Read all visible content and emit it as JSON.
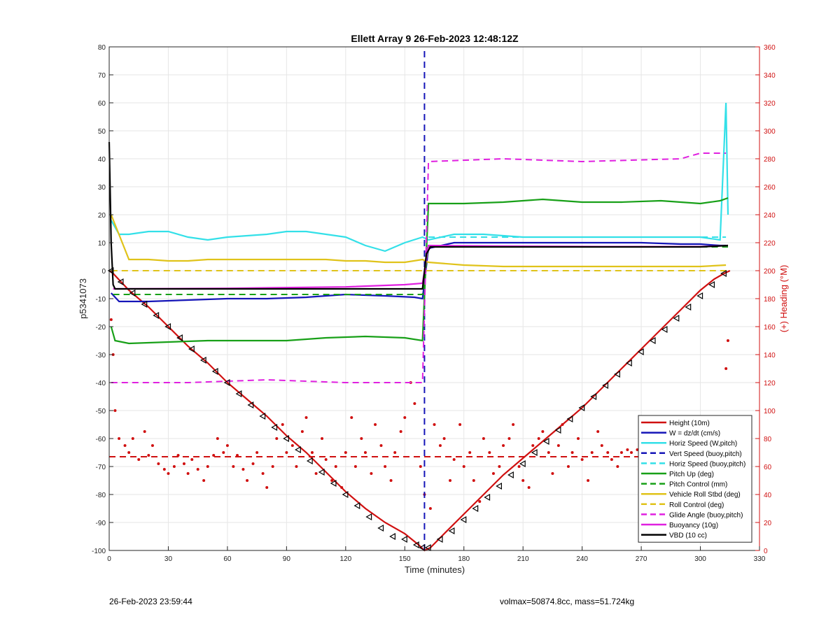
{
  "footer": {
    "left": "26-Feb-2023 23:59:44",
    "right": "volmax=50874.8cc, mass=51.724kg"
  },
  "chart_data": {
    "type": "line",
    "title": "Ellett Array 9 26-Feb-2023 12:48:12Z",
    "xlabel": "Time (minutes)",
    "ylabel_left": "p5341073",
    "ylabel_right": "(+) Heading (°M)",
    "xlim": [
      0,
      330
    ],
    "ylim_left": [
      -100,
      80
    ],
    "ylim_right": [
      0,
      360
    ],
    "xticks": [
      0,
      30,
      60,
      90,
      120,
      150,
      180,
      210,
      240,
      270,
      300,
      330
    ],
    "yticks_left": [
      80,
      70,
      60,
      50,
      40,
      30,
      20,
      10,
      0,
      -10,
      -20,
      -30,
      -40,
      -50,
      -60,
      -70,
      -80,
      -90,
      -100
    ],
    "yticks_right": [
      360,
      340,
      320,
      300,
      280,
      260,
      240,
      220,
      200,
      180,
      160,
      140,
      120,
      100,
      80,
      60,
      40,
      20,
      0
    ],
    "grid": true,
    "legend_position": "bottom-right",
    "apogee_time": 160,
    "colors": {
      "height": "#d01010",
      "w": "#1515b8",
      "horiz_speed": "#33e0e8",
      "pitch": "#18a018",
      "roll": "#e0c31a",
      "glide": "#e020e0",
      "buoyancy": "#e020e0",
      "vbd": "#000000",
      "heading": "#d01010"
    },
    "series": [
      {
        "name": "Height (10m)",
        "style": "solid",
        "color": "#d01010",
        "x": [
          0,
          2,
          10,
          20,
          30,
          40,
          50,
          60,
          70,
          80,
          90,
          100,
          110,
          120,
          130,
          140,
          150,
          157,
          160,
          163,
          170,
          180,
          190,
          200,
          210,
          220,
          230,
          240,
          250,
          260,
          270,
          280,
          290,
          300,
          307,
          312,
          315
        ],
        "y": [
          0,
          -1,
          -7,
          -13,
          -20,
          -27,
          -33,
          -40,
          -46,
          -52,
          -59,
          -65,
          -72,
          -79,
          -85,
          -90,
          -94,
          -98,
          -100,
          -99,
          -94,
          -87,
          -80,
          -73,
          -67,
          -61,
          -55,
          -49,
          -42,
          -35,
          -28,
          -21,
          -14,
          -7,
          -3,
          -1,
          0
        ]
      },
      {
        "name": "W = dz/dt (cm/s)",
        "style": "solid",
        "color": "#1515b8",
        "x": [
          1,
          5,
          20,
          40,
          60,
          80,
          100,
          120,
          140,
          155,
          159,
          162,
          175,
          190,
          210,
          230,
          250,
          270,
          290,
          300,
          310,
          313
        ],
        "y": [
          -8,
          -11,
          -11,
          -10.5,
          -10,
          -10,
          -9.5,
          -8.5,
          -9,
          -9.5,
          -10,
          8,
          10,
          10,
          10,
          10,
          10,
          10,
          9.5,
          9.5,
          9,
          9
        ]
      },
      {
        "name": "Horiz Speed (W,pitch)",
        "style": "solid",
        "color": "#33e0e8",
        "x": [
          1,
          5,
          10,
          20,
          30,
          40,
          50,
          60,
          70,
          80,
          90,
          100,
          110,
          120,
          130,
          140,
          150,
          159,
          162,
          175,
          190,
          210,
          230,
          250,
          270,
          290,
          300,
          310,
          313,
          314
        ],
        "y": [
          18,
          13,
          13,
          14,
          14,
          12,
          11,
          12,
          12.5,
          13,
          14,
          14,
          13,
          12,
          9,
          7,
          10,
          12,
          11,
          13,
          13,
          12,
          12,
          12,
          12,
          12,
          12,
          11,
          60,
          20
        ]
      },
      {
        "name": "Vert Speed (buoy,pitch)",
        "style": "dashed",
        "color": "#1515b8",
        "x": [
          160,
          160
        ],
        "y": [
          -100,
          80
        ]
      },
      {
        "name": "Horiz Speed (buoy,pitch)",
        "style": "dashed",
        "color": "#33e0e8",
        "x": [
          162,
          313
        ],
        "y": [
          12,
          12
        ]
      },
      {
        "name": "Pitch Up (deg)",
        "style": "solid",
        "color": "#18a018",
        "x": [
          1,
          3,
          10,
          30,
          50,
          70,
          90,
          110,
          130,
          150,
          159,
          162,
          180,
          200,
          220,
          240,
          260,
          280,
          300,
          310,
          314
        ],
        "y": [
          -20,
          -25,
          -26,
          -25.5,
          -25,
          -25,
          -25,
          -24,
          -23.5,
          -24,
          -25,
          24,
          24,
          24.5,
          25.5,
          24.5,
          24.5,
          25,
          24,
          25,
          26
        ]
      },
      {
        "name": "Pitch Control (mm)",
        "style": "dashed",
        "color": "#18a018",
        "x": [
          2,
          159,
          162,
          314
        ],
        "y": [
          -8.5,
          -8.5,
          8.5,
          8.5
        ]
      },
      {
        "name": "Vehicle Roll Stbd (deg)",
        "style": "solid",
        "color": "#e0c31a",
        "x": [
          1,
          10,
          20,
          30,
          40,
          50,
          60,
          70,
          80,
          90,
          100,
          110,
          120,
          130,
          140,
          150,
          159,
          162,
          180,
          200,
          220,
          240,
          260,
          280,
          300,
          313
        ],
        "y": [
          20,
          4,
          4,
          3.5,
          3.5,
          4,
          4,
          4,
          4,
          4,
          4,
          4,
          3.5,
          3.5,
          3,
          3,
          4,
          3,
          2,
          1.5,
          1.5,
          1.5,
          1.5,
          1.5,
          1.5,
          2
        ]
      },
      {
        "name": "Roll Control (deg)",
        "style": "dashed",
        "color": "#e0c31a",
        "x": [
          1,
          159,
          162,
          313
        ],
        "y": [
          0,
          0,
          0,
          0
        ]
      },
      {
        "name": "Glide Angle (buoy,pitch)",
        "style": "dashed",
        "color": "#e020e0",
        "x": [
          1,
          40,
          80,
          120,
          159,
          162,
          200,
          240,
          290,
          300,
          313
        ],
        "y": [
          -40,
          -40,
          -39,
          -40,
          -40,
          39,
          40,
          39,
          40,
          42,
          42
        ]
      },
      {
        "name": "Buoyancy (10g)",
        "style": "solid",
        "color": "#e020e0",
        "x": [
          2,
          60,
          120,
          150,
          159,
          162,
          200,
          250,
          300,
          314
        ],
        "y": [
          -6.5,
          -6.3,
          -5.8,
          -5,
          -4.5,
          9,
          8.8,
          8.6,
          8.6,
          9
        ]
      },
      {
        "name": "VBD (10 cc)",
        "style": "solid",
        "color": "#000000",
        "x": [
          0,
          1,
          2,
          3,
          159,
          161,
          163,
          200,
          250,
          300,
          314
        ],
        "y": [
          46,
          10,
          -5,
          -6.5,
          -6.5,
          6,
          8.5,
          8.5,
          8.5,
          8.5,
          9
        ]
      },
      {
        "name": "",
        "style": "dashed",
        "color": "#d01010",
        "axis": "right",
        "x": [
          0,
          314
        ],
        "y": [
          67,
          67
        ]
      }
    ],
    "heading_scatter": {
      "axis": "right",
      "x": [
        1,
        2,
        3,
        5,
        8,
        10,
        12,
        15,
        18,
        20,
        22,
        25,
        28,
        30,
        33,
        35,
        38,
        40,
        42,
        45,
        48,
        50,
        53,
        55,
        58,
        60,
        63,
        65,
        68,
        70,
        73,
        75,
        78,
        80,
        83,
        85,
        88,
        90,
        93,
        95,
        98,
        100,
        103,
        105,
        108,
        110,
        113,
        115,
        118,
        120,
        123,
        125,
        128,
        130,
        133,
        135,
        138,
        140,
        143,
        145,
        148,
        150,
        153,
        155,
        158,
        160,
        163,
        165,
        168,
        170,
        173,
        175,
        178,
        180,
        183,
        185,
        188,
        190,
        193,
        195,
        198,
        200,
        203,
        205,
        208,
        210,
        213,
        215,
        218,
        220,
        223,
        225,
        228,
        230,
        233,
        235,
        238,
        240,
        243,
        245,
        248,
        250,
        253,
        255,
        258,
        260,
        263,
        265,
        268,
        270,
        273,
        275,
        278,
        280,
        283,
        285,
        288,
        290,
        293,
        295,
        298,
        300,
        303,
        305,
        308,
        310,
        312,
        313,
        314
      ],
      "y": [
        165,
        140,
        100,
        80,
        75,
        70,
        80,
        65,
        85,
        68,
        75,
        62,
        58,
        55,
        60,
        68,
        62,
        55,
        65,
        58,
        50,
        60,
        68,
        80,
        70,
        75,
        60,
        68,
        58,
        50,
        62,
        70,
        55,
        45,
        60,
        80,
        90,
        70,
        75,
        60,
        85,
        95,
        70,
        55,
        80,
        65,
        50,
        60,
        45,
        70,
        95,
        60,
        80,
        70,
        55,
        90,
        75,
        60,
        50,
        70,
        85,
        95,
        120,
        105,
        60,
        40,
        30,
        90,
        75,
        80,
        50,
        65,
        90,
        60,
        70,
        50,
        35,
        80,
        70,
        55,
        60,
        75,
        80,
        90,
        60,
        50,
        45,
        75,
        80,
        85,
        70,
        55,
        75,
        90,
        60,
        70,
        80,
        65,
        50,
        70,
        85,
        75,
        70,
        65,
        60,
        70,
        72,
        70,
        72,
        68,
        70,
        75,
        68,
        70,
        72,
        75,
        70,
        68,
        72,
        75,
        70,
        65,
        70,
        75,
        80,
        85,
        95,
        130,
        150
      ]
    },
    "height_markers": {
      "x": [
        1,
        6,
        12,
        18,
        24,
        30,
        36,
        42,
        48,
        54,
        60,
        66,
        72,
        78,
        84,
        90,
        96,
        102,
        108,
        114,
        120,
        126,
        132,
        138,
        144,
        150,
        156,
        159,
        162,
        168,
        174,
        180,
        186,
        192,
        198,
        204,
        210,
        216,
        222,
        228,
        234,
        240,
        246,
        252,
        258,
        264,
        270,
        276,
        282,
        288,
        294,
        300,
        306,
        312
      ],
      "y": [
        0,
        -4,
        -8,
        -12,
        -16,
        -20,
        -24,
        -28,
        -32,
        -36,
        -40,
        -44,
        -48,
        -52,
        -56,
        -60,
        -64,
        -68,
        -72,
        -76,
        -80,
        -84,
        -88,
        -92,
        -95,
        -96,
        -98,
        -99,
        -99,
        -96,
        -93,
        -89,
        -85,
        -81,
        -77,
        -73,
        -69,
        -65,
        -61,
        -57,
        -53,
        -49,
        -45,
        -41,
        -37,
        -33,
        -29,
        -25,
        -21,
        -17,
        -13,
        -9,
        -5,
        -1
      ]
    }
  }
}
